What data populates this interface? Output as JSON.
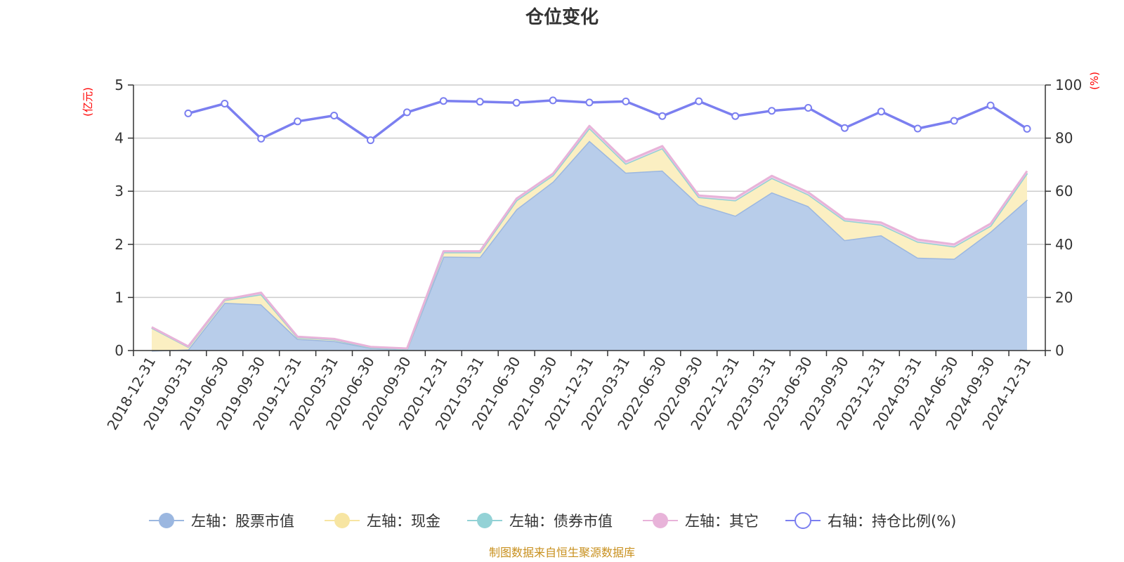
{
  "chart_data": {
    "type": "area",
    "title": "仓位变化",
    "left_axis_unit": "(亿元)",
    "right_axis_unit": "(%)",
    "categories": [
      "2018-12-31",
      "2019-03-31",
      "2019-06-30",
      "2019-09-30",
      "2019-12-31",
      "2020-03-31",
      "2020-06-30",
      "2020-09-30",
      "2020-12-31",
      "2021-03-31",
      "2021-06-30",
      "2021-09-30",
      "2021-12-31",
      "2022-03-31",
      "2022-06-30",
      "2022-09-30",
      "2022-12-31",
      "2023-03-31",
      "2023-06-30",
      "2023-09-30",
      "2023-12-31",
      "2024-03-31",
      "2024-06-30",
      "2024-09-30",
      "2024-12-31"
    ],
    "left_ylim": [
      0,
      5
    ],
    "left_ticks": [
      0,
      1,
      2,
      3,
      4,
      5
    ],
    "right_ylim": [
      0,
      100
    ],
    "right_ticks": [
      0,
      20,
      40,
      60,
      80,
      100
    ],
    "series": [
      {
        "name": "左轴：股票市值",
        "axis": "left",
        "color": "#9bb7e0",
        "fill": "#b8cdea",
        "values": [
          0,
          0.02,
          0.9,
          0.87,
          0.22,
          0.18,
          0.05,
          0.02,
          1.77,
          1.76,
          2.66,
          3.18,
          3.95,
          3.35,
          3.39,
          2.75,
          2.54,
          2.98,
          2.72,
          2.08,
          2.17,
          1.75,
          1.73,
          2.24,
          2.84
        ]
      },
      {
        "name": "左轴：现金",
        "axis": "left",
        "color": "#f7e5a2",
        "fill": "#fbefc2",
        "values": [
          0.43,
          0.05,
          0.05,
          0.19,
          0.03,
          0.03,
          0.01,
          0.01,
          0.08,
          0.09,
          0.17,
          0.12,
          0.24,
          0.17,
          0.42,
          0.14,
          0.29,
          0.27,
          0.22,
          0.37,
          0.2,
          0.3,
          0.23,
          0.11,
          0.5
        ]
      },
      {
        "name": "左轴：债券市值",
        "axis": "left",
        "color": "#93d2d6",
        "fill": "#b3e0e3",
        "values": [
          0,
          0,
          0,
          0,
          0,
          0,
          0,
          0,
          0,
          0,
          0,
          0,
          0,
          0,
          0,
          0,
          0,
          0,
          0,
          0,
          0,
          0,
          0,
          0,
          0
        ]
      },
      {
        "name": "左轴：其它",
        "axis": "left",
        "color": "#e8b3d9",
        "fill": "#f2cfe8",
        "values": [
          0.01,
          0.01,
          0.01,
          0.03,
          0.01,
          0.01,
          0.01,
          0.01,
          0.02,
          0.02,
          0.03,
          0.03,
          0.04,
          0.04,
          0.04,
          0.03,
          0.04,
          0.04,
          0.04,
          0.03,
          0.04,
          0.04,
          0.04,
          0.04,
          0.04
        ]
      },
      {
        "name": "右轴：持仓比例(%)",
        "axis": "right",
        "color": "#7b7ff0",
        "values": [
          null,
          89.3,
          93,
          79.8,
          86.3,
          88.5,
          79.2,
          89.7,
          94,
          93.7,
          93.3,
          94.2,
          93.4,
          93.8,
          88.3,
          93.9,
          88.3,
          90.3,
          91.4,
          83.8,
          90,
          83.6,
          86.5,
          92.3,
          83.5
        ]
      }
    ]
  },
  "source_text": "制图数据来自恒生聚源数据库"
}
